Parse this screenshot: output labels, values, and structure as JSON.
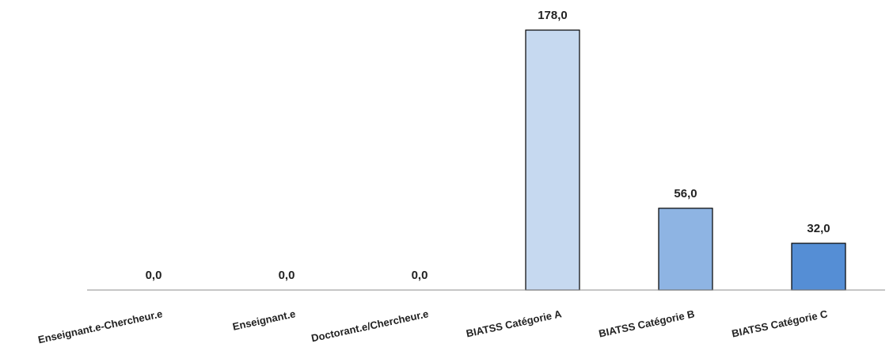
{
  "chart_data": {
    "type": "bar",
    "categories": [
      "Enseignant.e-Chercheur.e",
      "Enseignant.e",
      "Doctorant.e/Chercheur.e",
      "BIATSS Catégorie A",
      "BIATSS Catégorie B",
      "BIATSS Catégorie C"
    ],
    "values": [
      0,
      0,
      0,
      178,
      56,
      32
    ],
    "value_labels": [
      "0,0",
      "0,0",
      "0,0",
      "178,0",
      "56,0",
      "32,0"
    ],
    "colors": [
      "#c6d9f0",
      "#c6d9f0",
      "#c6d9f0",
      "#c6d9f0",
      "#8eb4e3",
      "#558ed5"
    ],
    "title": "",
    "xlabel": "",
    "ylabel": "",
    "ylim": [
      0,
      178
    ],
    "grid": false,
    "legend": "none"
  }
}
